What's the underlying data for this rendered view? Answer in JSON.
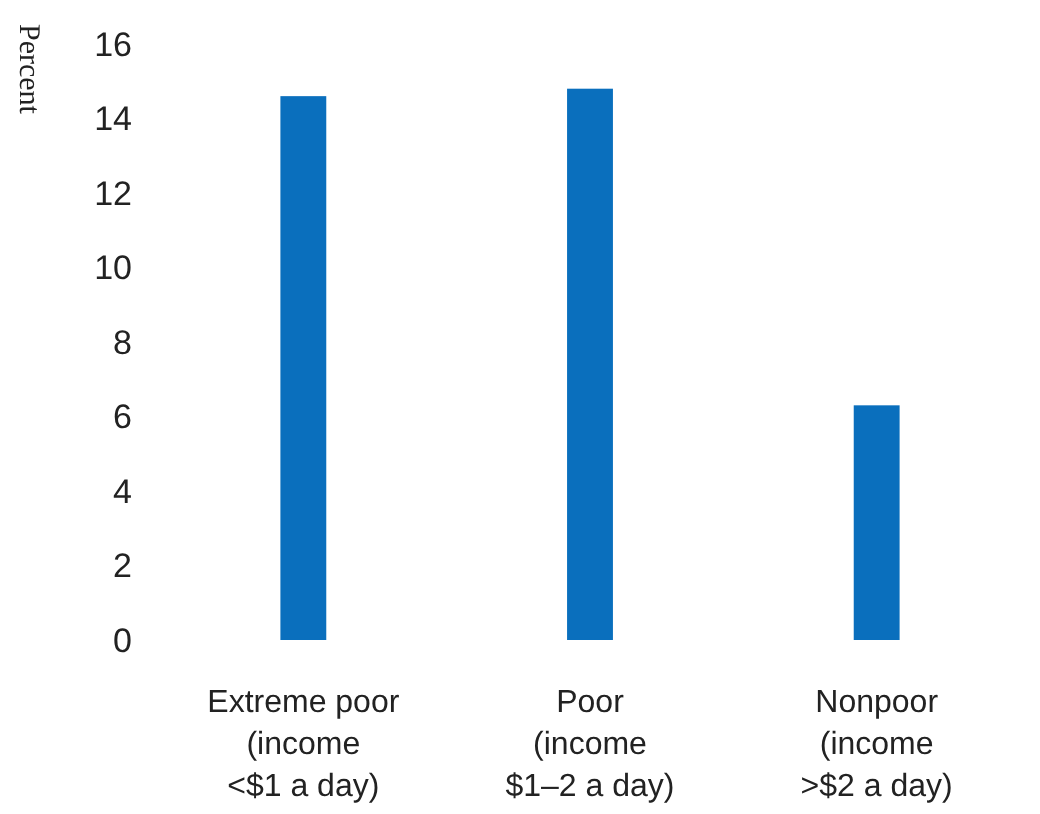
{
  "chart_data": {
    "type": "bar",
    "ylabel": "Percent",
    "categories": [
      "Extreme poor\n(income\n<$1 a day)",
      "Poor\n(income\n$1–2 a day)",
      "Nonpoor\n(income\n>$2 a day)"
    ],
    "values": [
      14.6,
      14.8,
      6.3
    ],
    "color": "#0a6fbd",
    "ylim": [
      0,
      16
    ],
    "yticks": [
      0,
      2,
      4,
      6,
      8,
      10,
      12,
      14,
      16
    ],
    "grid": false
  }
}
